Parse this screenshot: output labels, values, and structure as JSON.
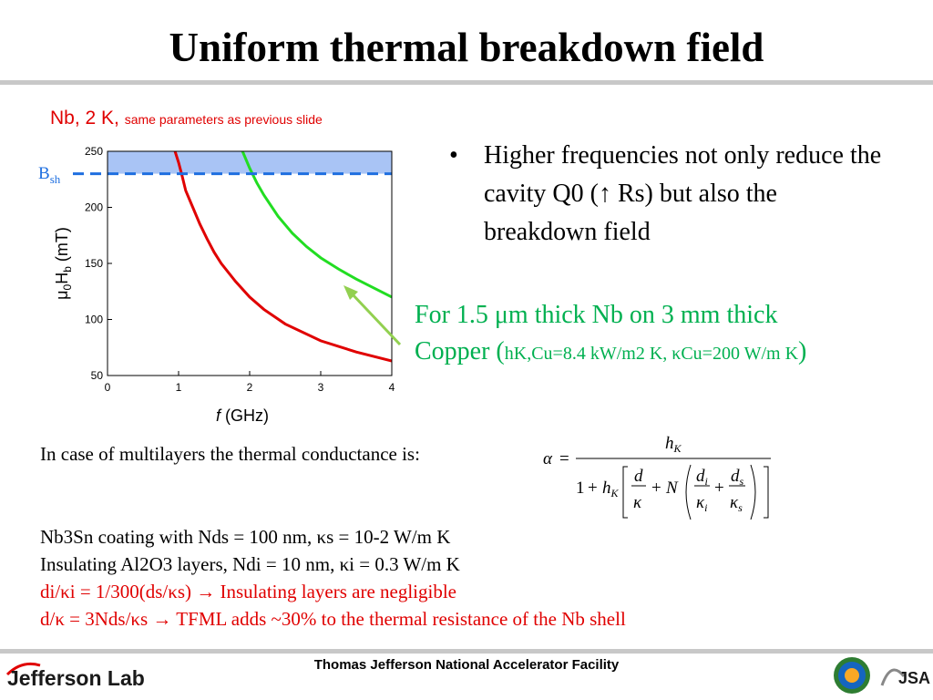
{
  "title": "Uniform thermal breakdown field",
  "chart_caption": {
    "main": "Nb, 2 K,",
    "small": "same parameters as previous slide"
  },
  "bullet": {
    "marker": "•",
    "text": "Higher frequencies not only reduce the cavity Q0 (↑ Rs) but also the breakdown field"
  },
  "green_note": {
    "line1": "For 1.5 μm thick Nb on 3 mm thick",
    "line2_prefix": "Copper (",
    "line2_detail": "hK,Cu=8.4 kW/m2 K, κCu=200 W/m K",
    "line2_suffix": ")"
  },
  "multilayer_text": "In case of multilayers the thermal conductance is:",
  "facts": [
    "Nb3Sn coating with Nds = 100 nm, κs = 10-2 W/m K",
    "Insulating Al2O3 layers, Ndi = 10 nm, κi = 0.3 W/m K",
    "di/κi = 1/300(ds/κs) → Insulating layers are negligible",
    "d/κ = 3Nds/κs → TFML adds ~30% to the thermal resistance of the Nb shell"
  ],
  "footer": {
    "text": "Thomas Jefferson National Accelerator Facility",
    "logo_text": "Jefferson Lab",
    "partner_logo": "JSA"
  },
  "colors": {
    "red_text": "#e00000",
    "green_text": "#00b050",
    "shade": "#a9c4f5",
    "dashed": "#1f6fe0",
    "curve_red": "#e00000",
    "curve_green": "#22dd22",
    "arrow": "#92d050"
  },
  "chart_data": {
    "type": "line",
    "xlabel": "f (GHz)",
    "ylabel": "μ0Hb (mT)",
    "xlim": [
      0,
      4
    ],
    "ylim": [
      50,
      250
    ],
    "x_ticks": [
      0,
      1,
      2,
      3,
      4
    ],
    "y_ticks": [
      50,
      100,
      150,
      200,
      250
    ],
    "grid": false,
    "annotation_line": {
      "label": "Bsh",
      "y": 230
    },
    "shaded_band": {
      "y_from": 230,
      "y_to": 250
    },
    "series": [
      {
        "color": "red",
        "x": [
          0.95,
          1.0,
          1.05,
          1.1,
          1.2,
          1.3,
          1.4,
          1.5,
          1.6,
          1.8,
          2.0,
          2.2,
          2.5,
          3.0,
          3.5,
          4.0
        ],
        "y": [
          250,
          240,
          228,
          215,
          200,
          185,
          172,
          160,
          150,
          134,
          120,
          109,
          96,
          81,
          71,
          63
        ]
      },
      {
        "color": "green",
        "x": [
          1.9,
          2.0,
          2.1,
          2.2,
          2.4,
          2.6,
          2.8,
          3.0,
          3.25,
          3.5,
          3.75,
          4.0
        ],
        "y": [
          250,
          235,
          222,
          211,
          192,
          177,
          165,
          155,
          145,
          136,
          128,
          120
        ]
      }
    ]
  }
}
